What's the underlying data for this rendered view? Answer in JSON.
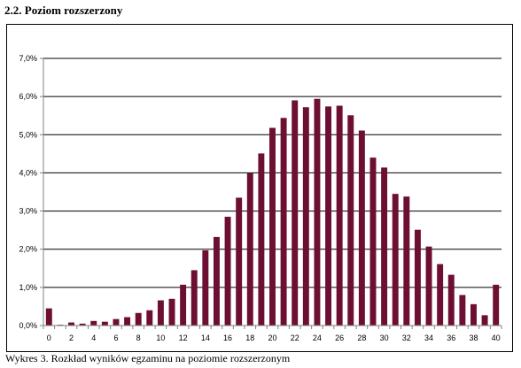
{
  "heading": "2.2. Poziom rozszerzony",
  "caption": "Wykres 3. Rozkład wyników egzaminu na poziomie rozszerzonym",
  "colors": {
    "bar": "#6d0f33",
    "grid": "#000000",
    "axis": "#808080"
  },
  "chart_data": {
    "type": "bar",
    "title": "",
    "xlabel": "",
    "ylabel": "",
    "ylim": [
      0,
      7
    ],
    "yticks": [
      "0,0%",
      "1,0%",
      "2,0%",
      "3,0%",
      "4,0%",
      "5,0%",
      "6,0%",
      "7,0%"
    ],
    "xtick_labels": [
      "0",
      "2",
      "4",
      "6",
      "8",
      "10",
      "12",
      "14",
      "16",
      "18",
      "20",
      "22",
      "24",
      "26",
      "28",
      "30",
      "32",
      "34",
      "36",
      "38",
      "40"
    ],
    "categories": [
      0,
      1,
      2,
      3,
      4,
      5,
      6,
      7,
      8,
      9,
      10,
      11,
      12,
      13,
      14,
      15,
      16,
      17,
      18,
      19,
      20,
      21,
      22,
      23,
      24,
      25,
      26,
      27,
      28,
      29,
      30,
      31,
      32,
      33,
      34,
      35,
      36,
      37,
      38,
      39,
      40
    ],
    "values": [
      0.45,
      0.02,
      0.08,
      0.05,
      0.12,
      0.1,
      0.17,
      0.22,
      0.33,
      0.4,
      0.66,
      0.7,
      1.07,
      1.45,
      1.97,
      2.32,
      2.85,
      3.35,
      3.99,
      4.51,
      5.18,
      5.44,
      5.9,
      5.72,
      5.94,
      5.74,
      5.76,
      5.51,
      5.11,
      4.4,
      4.14,
      3.45,
      3.38,
      2.51,
      2.07,
      1.61,
      1.33,
      0.8,
      0.56,
      0.27,
      1.07
    ],
    "unit": "%",
    "grid": true,
    "legend": "none"
  }
}
